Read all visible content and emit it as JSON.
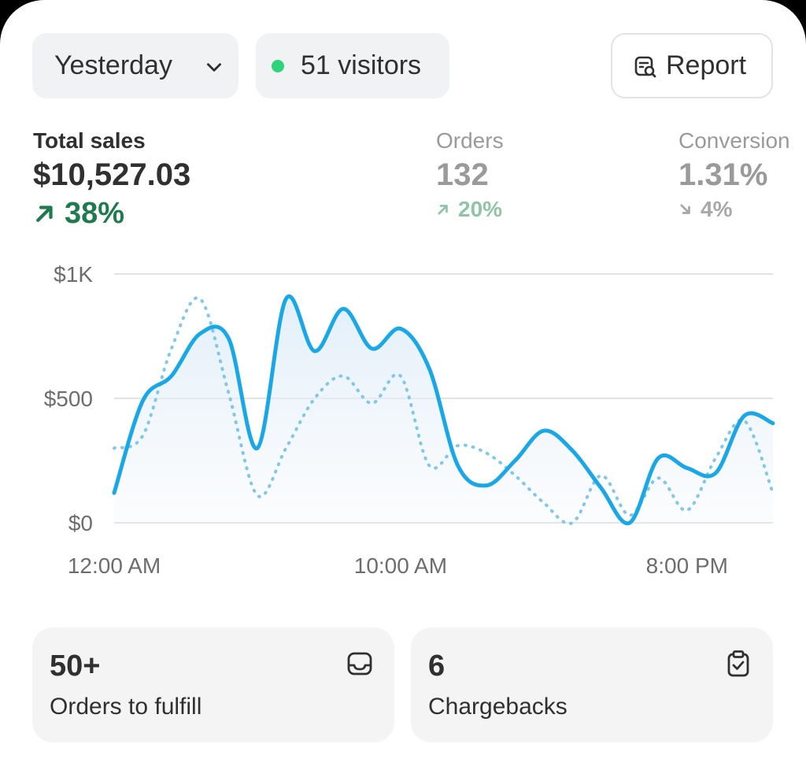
{
  "header": {
    "date_filter": "Yesterday",
    "visitors_label": "51 visitors",
    "visitors_dot_color": "#2ed47a",
    "report_label": "Report",
    "report_icon": "report-search-icon"
  },
  "metrics": [
    {
      "label": "Total sales",
      "value": "$10,527.03",
      "change": "38%",
      "direction": "up",
      "color": "#1f7a4d"
    },
    {
      "label": "Orders",
      "value": "132",
      "change": "20%",
      "direction": "up",
      "color": "#8fc4a6"
    },
    {
      "label": "Conversion",
      "value": "1.31%",
      "change": "4%",
      "direction": "down",
      "color": "#a8a8a8"
    }
  ],
  "chart_data": {
    "type": "line",
    "y_ticks": [
      "$1K",
      "$500",
      "$0"
    ],
    "x_ticks": [
      "12:00 AM",
      "10:00 AM",
      "8:00 PM"
    ],
    "ylim": [
      0,
      1000
    ],
    "xlim": [
      0,
      23
    ],
    "grid": true,
    "series": [
      {
        "style": "solid",
        "color": "#1aa7e8",
        "x": [
          0,
          1,
          2,
          3,
          4,
          5,
          6,
          7,
          8,
          9,
          10,
          11,
          12,
          13,
          14,
          15,
          16,
          17,
          18,
          19,
          20,
          21,
          22,
          23
        ],
        "values": [
          120,
          490,
          590,
          760,
          740,
          300,
          900,
          690,
          860,
          700,
          780,
          620,
          230,
          150,
          250,
          370,
          290,
          140,
          0,
          260,
          220,
          200,
          430,
          400
        ]
      },
      {
        "style": "dotted",
        "color": "#7fc8ea",
        "x": [
          0,
          1,
          2,
          3,
          4,
          5,
          6,
          7,
          8,
          9,
          10,
          11,
          12,
          13,
          14,
          15,
          16,
          17,
          18,
          19,
          20,
          21,
          22,
          23
        ],
        "values": [
          300,
          350,
          700,
          900,
          520,
          110,
          300,
          500,
          590,
          480,
          590,
          230,
          310,
          280,
          190,
          80,
          0,
          190,
          30,
          180,
          50,
          260,
          410,
          120
        ]
      }
    ]
  },
  "tiles": [
    {
      "value": "50+",
      "caption": "Orders to fulfill",
      "icon": "inbox-icon"
    },
    {
      "value": "6",
      "caption": "Chargebacks",
      "icon": "clipboard-check-icon"
    }
  ]
}
